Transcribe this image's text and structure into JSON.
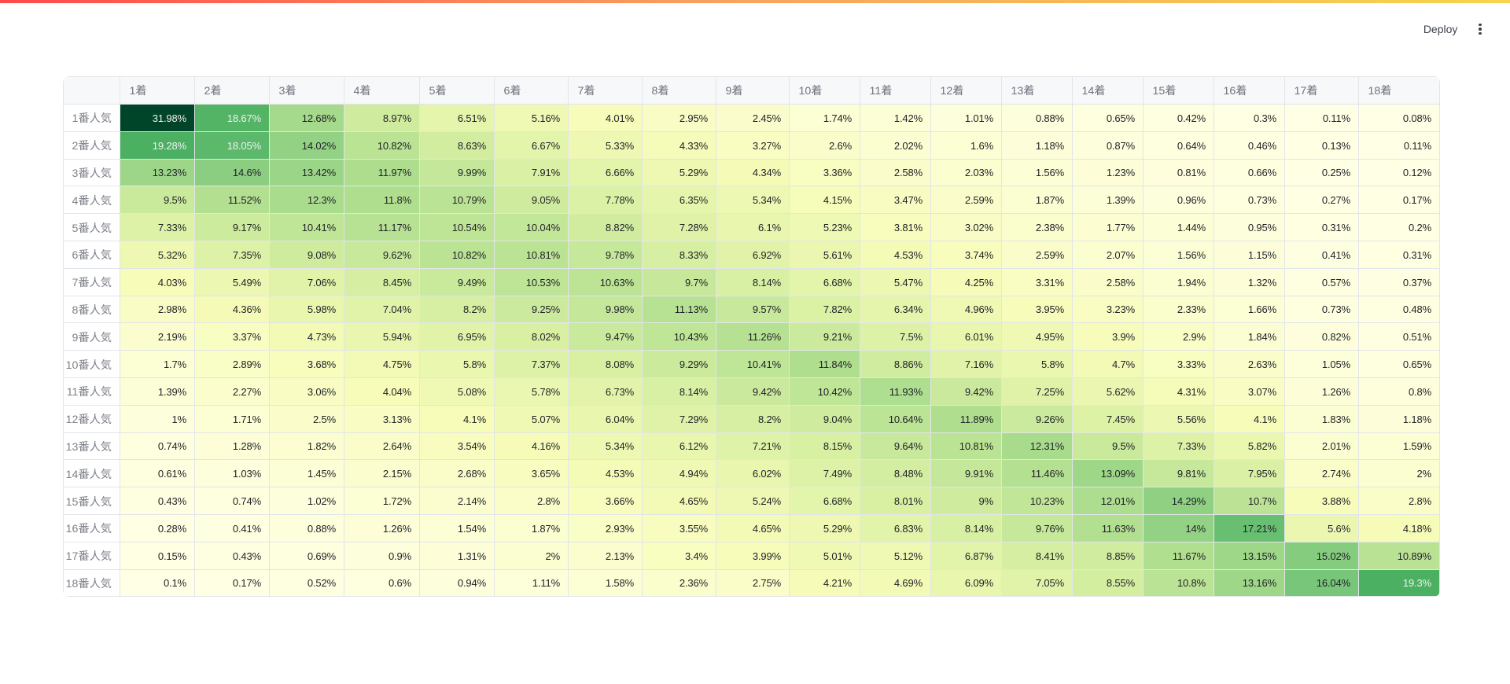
{
  "header": {
    "deploy_label": "Deploy"
  },
  "decoration": {
    "gradient_left": "#ff4b4b",
    "gradient_mid": "#f8a15f",
    "gradient_right": "#f5d44e"
  },
  "chart_data": {
    "type": "heatmap",
    "x_labels": [
      "1着",
      "2着",
      "3着",
      "4着",
      "5着",
      "6着",
      "7着",
      "8着",
      "9着",
      "10着",
      "11着",
      "12着",
      "13着",
      "14着",
      "15着",
      "16着",
      "17着",
      "18着"
    ],
    "y_labels": [
      "1番人気",
      "2番人気",
      "3番人気",
      "4番人気",
      "5番人気",
      "6番人気",
      "7番人気",
      "8番人気",
      "9番人気",
      "10番人気",
      "11番人気",
      "12番人気",
      "13番人気",
      "14番人気",
      "15番人気",
      "16番人気",
      "17番人気",
      "18番人気"
    ],
    "values": [
      [
        31.98,
        18.67,
        12.68,
        8.97,
        6.51,
        5.16,
        4.01,
        2.95,
        2.45,
        1.74,
        1.42,
        1.01,
        0.88,
        0.65,
        0.42,
        0.3,
        0.11,
        0.08
      ],
      [
        19.28,
        18.05,
        14.02,
        10.82,
        8.63,
        6.67,
        5.33,
        4.33,
        3.27,
        2.6,
        2.02,
        1.6,
        1.18,
        0.87,
        0.64,
        0.46,
        0.13,
        0.11
      ],
      [
        13.23,
        14.6,
        13.42,
        11.97,
        9.99,
        7.91,
        6.66,
        5.29,
        4.34,
        3.36,
        2.58,
        2.03,
        1.56,
        1.23,
        0.81,
        0.66,
        0.25,
        0.12
      ],
      [
        9.5,
        11.52,
        12.3,
        11.8,
        10.79,
        9.05,
        7.78,
        6.35,
        5.34,
        4.15,
        3.47,
        2.59,
        1.87,
        1.39,
        0.96,
        0.73,
        0.27,
        0.17
      ],
      [
        7.33,
        9.17,
        10.41,
        11.17,
        10.54,
        10.04,
        8.82,
        7.28,
        6.1,
        5.23,
        3.81,
        3.02,
        2.38,
        1.77,
        1.44,
        0.95,
        0.31,
        0.2
      ],
      [
        5.32,
        7.35,
        9.08,
        9.62,
        10.82,
        10.81,
        9.78,
        8.33,
        6.92,
        5.61,
        4.53,
        3.74,
        2.59,
        2.07,
        1.56,
        1.15,
        0.41,
        0.31
      ],
      [
        4.03,
        5.49,
        7.06,
        8.45,
        9.49,
        10.53,
        10.63,
        9.7,
        8.14,
        6.68,
        5.47,
        4.25,
        3.31,
        2.58,
        1.94,
        1.32,
        0.57,
        0.37
      ],
      [
        2.98,
        4.36,
        5.98,
        7.04,
        8.2,
        9.25,
        9.98,
        11.13,
        9.57,
        7.82,
        6.34,
        4.96,
        3.95,
        3.23,
        2.33,
        1.66,
        0.73,
        0.48
      ],
      [
        2.19,
        3.37,
        4.73,
        5.94,
        6.95,
        8.02,
        9.47,
        10.43,
        11.26,
        9.21,
        7.5,
        6.01,
        4.95,
        3.9,
        2.9,
        1.84,
        0.82,
        0.51
      ],
      [
        1.7,
        2.89,
        3.68,
        4.75,
        5.8,
        7.37,
        8.08,
        9.29,
        10.41,
        11.84,
        8.86,
        7.16,
        5.8,
        4.7,
        3.33,
        2.63,
        1.05,
        0.65
      ],
      [
        1.39,
        2.27,
        3.06,
        4.04,
        5.08,
        5.78,
        6.73,
        8.14,
        9.42,
        10.42,
        11.93,
        9.42,
        7.25,
        5.62,
        4.31,
        3.07,
        1.26,
        0.8
      ],
      [
        1,
        1.71,
        2.5,
        3.13,
        4.1,
        5.07,
        6.04,
        7.29,
        8.2,
        9.04,
        10.64,
        11.89,
        9.26,
        7.45,
        5.56,
        4.1,
        1.83,
        1.18
      ],
      [
        0.74,
        1.28,
        1.82,
        2.64,
        3.54,
        4.16,
        5.34,
        6.12,
        7.21,
        8.15,
        9.64,
        10.81,
        12.31,
        9.5,
        7.33,
        5.82,
        2.01,
        1.59
      ],
      [
        0.61,
        1.03,
        1.45,
        2.15,
        2.68,
        3.65,
        4.53,
        4.94,
        6.02,
        7.49,
        8.48,
        9.91,
        11.46,
        13.09,
        9.81,
        7.95,
        2.74,
        2
      ],
      [
        0.43,
        0.74,
        1.02,
        1.72,
        2.14,
        2.8,
        3.66,
        4.65,
        5.24,
        6.68,
        8.01,
        9,
        10.23,
        12.01,
        14.29,
        10.7,
        3.88,
        2.8
      ],
      [
        0.28,
        0.41,
        0.88,
        1.26,
        1.54,
        1.87,
        2.93,
        3.55,
        4.65,
        5.29,
        6.83,
        8.14,
        9.76,
        11.63,
        14,
        17.21,
        5.6,
        4.18
      ],
      [
        0.15,
        0.43,
        0.69,
        0.9,
        1.31,
        2,
        2.13,
        3.4,
        3.99,
        5.01,
        5.12,
        6.87,
        8.41,
        8.85,
        11.67,
        13.15,
        15.02,
        10.89
      ],
      [
        0.1,
        0.17,
        0.52,
        0.6,
        0.94,
        1.11,
        1.58,
        2.36,
        2.75,
        4.21,
        4.69,
        6.09,
        7.05,
        8.55,
        10.8,
        13.16,
        16.04,
        19.3
      ]
    ],
    "value_suffix": "%",
    "colormap": "YlGn",
    "vmin": 0.08,
    "vmax": 31.98,
    "text_color_rule": "white-on-dark (luminance threshold 0.408)"
  }
}
